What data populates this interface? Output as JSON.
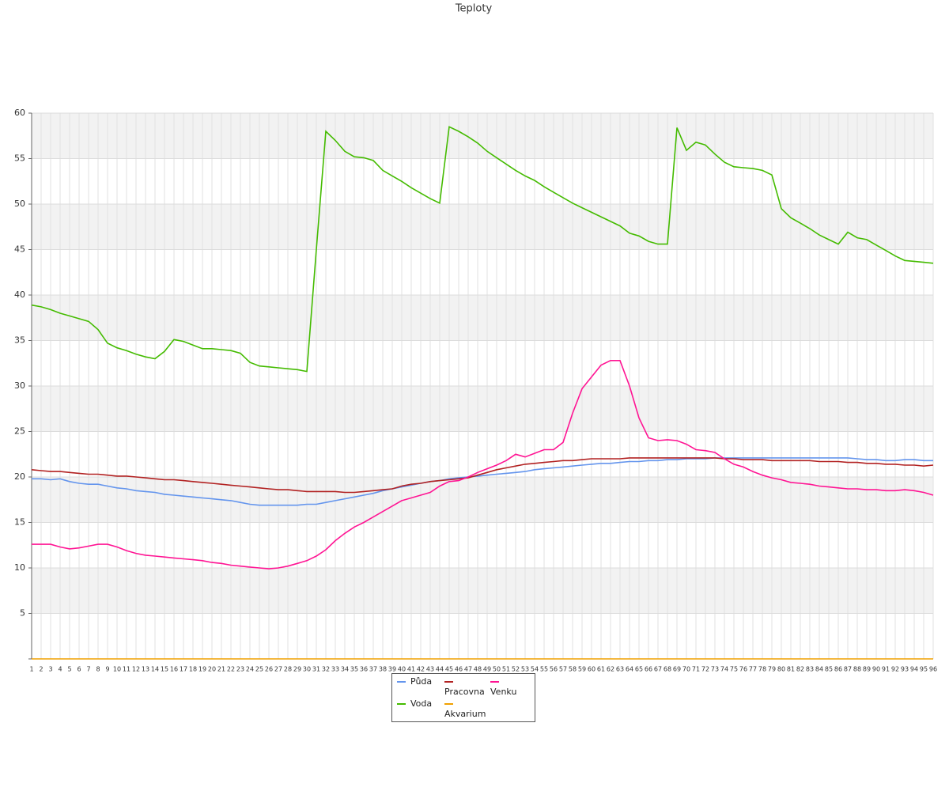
{
  "chart_data": {
    "type": "line",
    "title": "Teploty",
    "categories": [
      "1",
      "2",
      "3",
      "4",
      "5",
      "6",
      "7",
      "8",
      "9",
      "10",
      "11",
      "12",
      "13",
      "14",
      "15",
      "16",
      "17",
      "18",
      "19",
      "20",
      "21",
      "22",
      "23",
      "24",
      "25",
      "26",
      "27",
      "28",
      "29",
      "30",
      "31",
      "32",
      "33",
      "34",
      "35",
      "36",
      "37",
      "38",
      "39",
      "40",
      "41",
      "42",
      "43",
      "44",
      "45",
      "46",
      "47",
      "48",
      "49",
      "50",
      "51",
      "52",
      "53",
      "54",
      "55",
      "56",
      "57",
      "58",
      "59",
      "60",
      "61",
      "62",
      "63",
      "64",
      "65",
      "66",
      "67",
      "68",
      "69",
      "70",
      "71",
      "72",
      "73",
      "74",
      "75",
      "76",
      "77",
      "78",
      "79",
      "80",
      "81",
      "82",
      "83",
      "84",
      "85",
      "86",
      "87",
      "88",
      "89",
      "90",
      "91",
      "92",
      "93",
      "94",
      "95",
      "96"
    ],
    "ylim": [
      0,
      60
    ],
    "yticks": [
      5,
      10,
      15,
      20,
      25,
      30,
      35,
      40,
      45,
      50,
      55,
      60
    ],
    "grid": true,
    "series": [
      {
        "name": "Půda",
        "color": "#6495ed",
        "values": [
          19.8,
          19.8,
          19.7,
          19.8,
          19.5,
          19.3,
          19.2,
          19.2,
          19.0,
          18.8,
          18.7,
          18.5,
          18.4,
          18.3,
          18.1,
          18.0,
          17.9,
          17.8,
          17.7,
          17.6,
          17.5,
          17.4,
          17.2,
          17.0,
          16.9,
          16.9,
          16.9,
          16.9,
          16.9,
          17.0,
          17.0,
          17.2,
          17.4,
          17.6,
          17.8,
          18.0,
          18.2,
          18.5,
          18.7,
          18.9,
          19.1,
          19.3,
          19.5,
          19.6,
          19.8,
          19.9,
          20.0,
          20.1,
          20.2,
          20.3,
          20.4,
          20.5,
          20.6,
          20.8,
          20.9,
          21.0,
          21.1,
          21.2,
          21.3,
          21.4,
          21.5,
          21.5,
          21.6,
          21.7,
          21.7,
          21.8,
          21.8,
          21.9,
          21.9,
          22.0,
          22.0,
          22.0,
          22.1,
          22.1,
          22.1,
          22.1,
          22.1,
          22.1,
          22.1,
          22.1,
          22.1,
          22.1,
          22.1,
          22.1,
          22.1,
          22.1,
          22.1,
          22.0,
          21.9,
          21.9,
          21.8,
          21.8,
          21.9,
          21.9,
          21.8,
          21.8
        ]
      },
      {
        "name": "Pracovna",
        "color": "#b22222",
        "values": [
          20.8,
          20.7,
          20.6,
          20.6,
          20.5,
          20.4,
          20.3,
          20.3,
          20.2,
          20.1,
          20.1,
          20.0,
          19.9,
          19.8,
          19.7,
          19.7,
          19.6,
          19.5,
          19.4,
          19.3,
          19.2,
          19.1,
          19.0,
          18.9,
          18.8,
          18.7,
          18.6,
          18.6,
          18.5,
          18.4,
          18.4,
          18.4,
          18.4,
          18.3,
          18.3,
          18.4,
          18.5,
          18.6,
          18.7,
          19.0,
          19.2,
          19.3,
          19.5,
          19.6,
          19.7,
          19.8,
          19.9,
          20.2,
          20.5,
          20.8,
          21.0,
          21.2,
          21.4,
          21.5,
          21.6,
          21.7,
          21.8,
          21.8,
          21.9,
          22.0,
          22.0,
          22.0,
          22.0,
          22.1,
          22.1,
          22.1,
          22.1,
          22.1,
          22.1,
          22.1,
          22.1,
          22.1,
          22.1,
          22.0,
          22.0,
          21.9,
          21.9,
          21.9,
          21.8,
          21.8,
          21.8,
          21.8,
          21.8,
          21.7,
          21.7,
          21.7,
          21.6,
          21.6,
          21.5,
          21.5,
          21.4,
          21.4,
          21.3,
          21.3,
          21.2,
          21.3
        ]
      },
      {
        "name": "Venku",
        "color": "#ff1493",
        "values": [
          12.6,
          12.6,
          12.6,
          12.3,
          12.1,
          12.2,
          12.4,
          12.6,
          12.6,
          12.3,
          11.9,
          11.6,
          11.4,
          11.3,
          11.2,
          11.1,
          11.0,
          10.9,
          10.8,
          10.6,
          10.5,
          10.3,
          10.2,
          10.1,
          10.0,
          9.9,
          10.0,
          10.2,
          10.5,
          10.8,
          11.3,
          12.0,
          13.0,
          13.8,
          14.5,
          15.0,
          15.6,
          16.2,
          16.8,
          17.4,
          17.7,
          18.0,
          18.3,
          19.0,
          19.5,
          19.6,
          20.0,
          20.5,
          20.9,
          21.3,
          21.8,
          22.5,
          22.2,
          22.6,
          23.0,
          23.0,
          23.8,
          27.0,
          29.7,
          31.0,
          32.3,
          32.8,
          32.8,
          30.0,
          26.5,
          24.3,
          24.0,
          24.1,
          24.0,
          23.6,
          23.0,
          22.9,
          22.7,
          22.0,
          21.4,
          21.1,
          20.6,
          20.2,
          19.9,
          19.7,
          19.4,
          19.3,
          19.2,
          19.0,
          18.9,
          18.8,
          18.7,
          18.7,
          18.6,
          18.6,
          18.5,
          18.5,
          18.6,
          18.5,
          18.3,
          18.0
        ]
      },
      {
        "name": "Voda",
        "color": "#44bb00",
        "values": [
          38.9,
          38.7,
          38.4,
          38.0,
          37.7,
          37.4,
          37.1,
          36.2,
          34.7,
          34.2,
          33.9,
          33.5,
          33.2,
          33.0,
          33.8,
          35.1,
          34.9,
          34.5,
          34.1,
          34.1,
          34.0,
          33.9,
          33.6,
          32.6,
          32.2,
          32.1,
          32.0,
          31.9,
          31.8,
          31.6,
          45.0,
          58.0,
          57.0,
          55.8,
          55.2,
          55.1,
          54.8,
          53.7,
          53.1,
          52.5,
          51.8,
          51.2,
          50.6,
          50.1,
          58.5,
          58.0,
          57.4,
          56.7,
          55.8,
          55.1,
          54.4,
          53.7,
          53.1,
          52.6,
          51.9,
          51.3,
          50.7,
          50.1,
          49.6,
          49.1,
          48.6,
          48.1,
          47.6,
          46.8,
          46.5,
          45.9,
          45.6,
          45.6,
          58.4,
          55.9,
          56.8,
          56.5,
          55.5,
          54.6,
          54.1,
          54.0,
          53.9,
          53.7,
          53.2,
          49.5,
          48.5,
          47.9,
          47.3,
          46.6,
          46.1,
          45.6,
          46.9,
          46.3,
          46.1,
          45.5,
          44.9,
          44.3,
          43.8,
          43.7,
          43.6,
          43.5
        ]
      },
      {
        "name": "Akvarium",
        "color": "#f0a000",
        "values": [
          0,
          0,
          0,
          0,
          0,
          0,
          0,
          0,
          0,
          0,
          0,
          0,
          0,
          0,
          0,
          0,
          0,
          0,
          0,
          0,
          0,
          0,
          0,
          0,
          0,
          0,
          0,
          0,
          0,
          0,
          0,
          0,
          0,
          0,
          0,
          0,
          0,
          0,
          0,
          0,
          0,
          0,
          0,
          0,
          0,
          0,
          0,
          0,
          0,
          0,
          0,
          0,
          0,
          0,
          0,
          0,
          0,
          0,
          0,
          0,
          0,
          0,
          0,
          0,
          0,
          0,
          0,
          0,
          0,
          0,
          0,
          0,
          0,
          0,
          0,
          0,
          0,
          0,
          0,
          0,
          0,
          0,
          0,
          0,
          0,
          0,
          0,
          0,
          0,
          0,
          0,
          0,
          0,
          0,
          0,
          0
        ]
      }
    ]
  }
}
